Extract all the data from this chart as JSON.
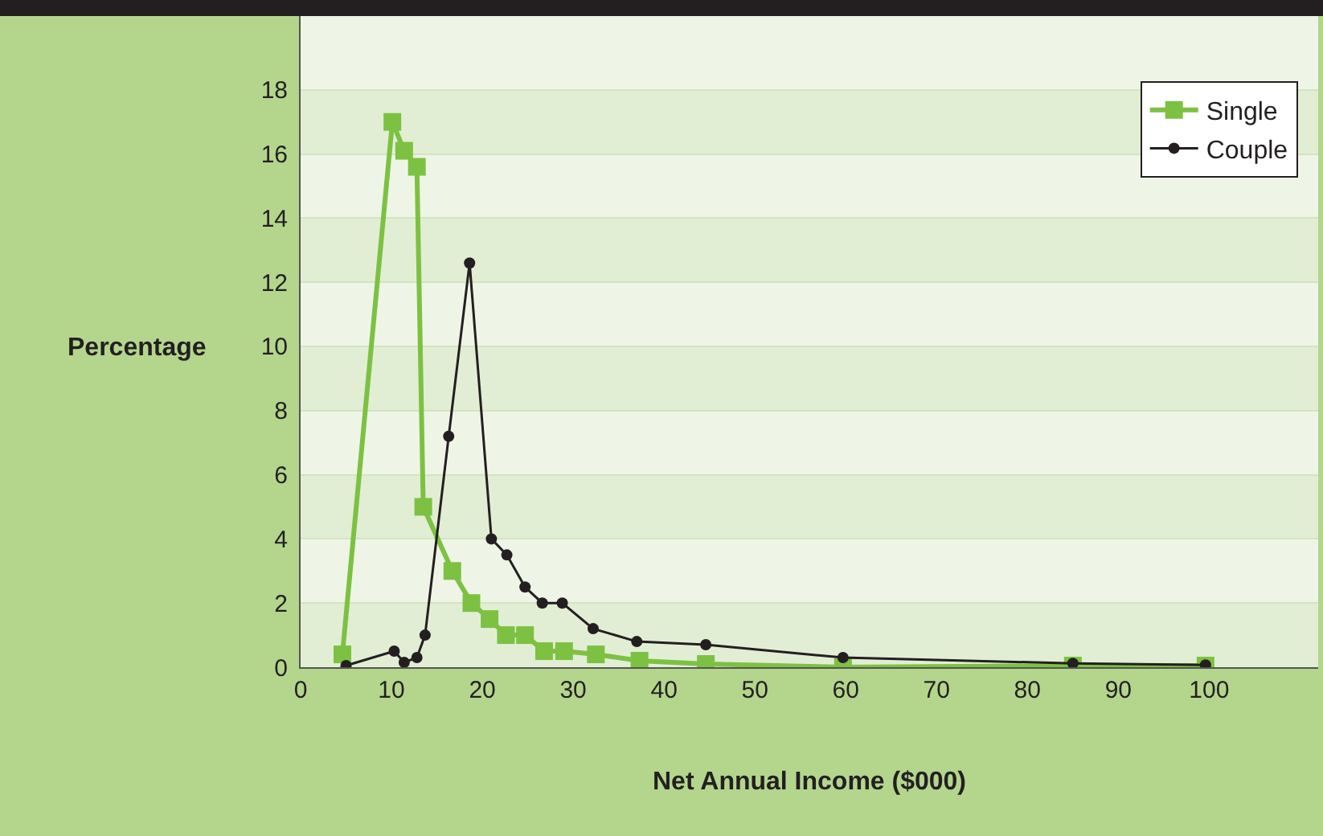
{
  "chart_data": {
    "type": "line",
    "xlabel": "Net Annual Income ($000)",
    "ylabel": "Percentage",
    "xlim": [
      0,
      112
    ],
    "ylim": [
      0,
      20.3
    ],
    "xticks": [
      0,
      10,
      20,
      30,
      40,
      50,
      60,
      70,
      80,
      90,
      100
    ],
    "yticks": [
      0,
      2,
      4,
      6,
      8,
      10,
      12,
      14,
      16,
      18
    ],
    "grid": "y",
    "legend": "top right",
    "series": [
      {
        "name": "Single",
        "color": "#7dc142",
        "marker": "square",
        "x": [
          4.6,
          10.1,
          11.4,
          12.8,
          13.5,
          16.7,
          18.8,
          20.8,
          22.6,
          24.7,
          26.8,
          29,
          32.5,
          37.3,
          44.6,
          59.7,
          85,
          99.6
        ],
        "values": [
          0.4,
          17,
          16.1,
          15.6,
          5.0,
          3.0,
          2.0,
          1.5,
          1.0,
          1.0,
          0.5,
          0.5,
          0.4,
          0.2,
          0.1,
          0,
          0.05,
          0.05
        ]
      },
      {
        "name": "Couple",
        "color": "#231f20",
        "marker": "circle",
        "x": [
          5,
          10.3,
          11.4,
          12.8,
          13.7,
          16.3,
          18.6,
          21,
          22.7,
          24.7,
          26.6,
          28.8,
          32.2,
          37,
          44.6,
          59.7,
          85,
          99.6
        ],
        "values": [
          0.05,
          0.5,
          0.15,
          0.3,
          1.0,
          7.2,
          12.6,
          4.0,
          3.5,
          2.5,
          2.0,
          2.0,
          1.2,
          0.8,
          0.7,
          0.3,
          0.12,
          0.07
        ]
      }
    ]
  }
}
